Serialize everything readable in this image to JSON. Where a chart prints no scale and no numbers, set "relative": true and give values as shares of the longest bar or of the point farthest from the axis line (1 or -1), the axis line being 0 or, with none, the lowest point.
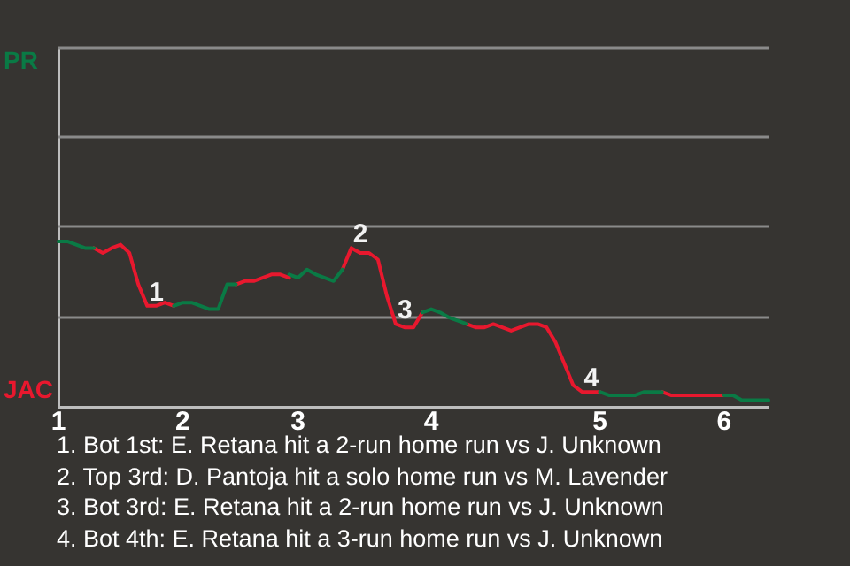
{
  "chart_data": {
    "type": "line",
    "relative": true,
    "categories": [
      "1",
      null,
      null,
      null,
      null,
      null,
      null,
      null,
      null,
      null,
      null,
      null,
      null,
      null,
      "2",
      null,
      null,
      null,
      null,
      null,
      null,
      null,
      null,
      null,
      null,
      null,
      null,
      "3",
      null,
      null,
      null,
      null,
      null,
      null,
      null,
      null,
      null,
      null,
      null,
      null,
      null,
      null,
      "4",
      null,
      null,
      null,
      null,
      null,
      null,
      null,
      null,
      null,
      null,
      null,
      null,
      null,
      null,
      null,
      null,
      null,
      null,
      "5",
      null,
      null,
      null,
      null,
      null,
      null,
      null,
      null,
      null,
      null,
      null,
      null,
      null,
      "6",
      null,
      null,
      null,
      null,
      null
    ],
    "series": [
      {
        "name": "PR",
        "color": "#0a7a45",
        "values": [
          1,
          1,
          0.98,
          0.96,
          0.96,
          null,
          null,
          null,
          null,
          null,
          null,
          null,
          null,
          0.61,
          0.63,
          0.63,
          0.61,
          0.59,
          0.59,
          0.74,
          0.74,
          null,
          null,
          null,
          null,
          null,
          0.8,
          0.78,
          0.83,
          0.8,
          0.78,
          0.76,
          0.83,
          null,
          null,
          null,
          null,
          null,
          null,
          null,
          null,
          0.57,
          0.59,
          0.57,
          0.54,
          0.52,
          0.5,
          null,
          null,
          null,
          null,
          null,
          null,
          null,
          null,
          null,
          null,
          null,
          null,
          null,
          null,
          0.09,
          0.07,
          0.07,
          0.07,
          0.07,
          0.09,
          0.09,
          0.09,
          null,
          null,
          null,
          null,
          null,
          null,
          0.07,
          0.07,
          0.04,
          0.04,
          0.04,
          0.04
        ]
      },
      {
        "name": "JAC",
        "color": "#e8182e",
        "values": [
          null,
          null,
          null,
          null,
          0.96,
          0.93,
          0.96,
          0.98,
          0.93,
          0.74,
          0.61,
          0.61,
          0.63,
          0.61,
          null,
          null,
          null,
          null,
          null,
          null,
          0.74,
          0.76,
          0.76,
          0.78,
          0.8,
          0.8,
          0.78,
          null,
          null,
          null,
          null,
          null,
          0.83,
          0.96,
          0.93,
          0.93,
          0.89,
          0.67,
          0.5,
          0.48,
          0.48,
          0.57,
          null,
          null,
          null,
          null,
          0.5,
          0.48,
          0.48,
          0.5,
          0.48,
          0.46,
          0.48,
          0.5,
          0.5,
          0.48,
          0.39,
          0.26,
          0.13,
          0.09,
          0.09,
          0.09,
          null,
          null,
          null,
          null,
          null,
          null,
          0.09,
          0.07,
          0.07,
          0.07,
          0.07,
          0.07,
          0.07,
          0.07,
          null,
          null,
          null,
          null,
          null
        ]
      }
    ],
    "ref_lines": [
      {
        "axis": "y",
        "value": 0.54,
        "color": "#8a8a8a"
      },
      {
        "axis": "y",
        "value": 1.09,
        "color": "#8a8a8a"
      },
      {
        "axis": "y",
        "value": 1.63,
        "color": "#8a8a8a"
      },
      {
        "axis": "y",
        "value": 2.17,
        "color": "#8a8a8a"
      }
    ],
    "marker": "none",
    "line_style": "solid",
    "annotations": [
      {
        "text": "1",
        "y": 0.61
      },
      {
        "text": "2",
        "y": 0.96
      },
      {
        "text": "3",
        "y": 0.5
      },
      {
        "text": "4",
        "y": 0.09
      },
      "1. Bot 1st: E. Retana hit a 2-run home run vs J. Unknown",
      "2. Top 3rd: D. Pantoja hit a solo home run vs M. Lavender",
      "3. Bot 3rd: E. Retana hit a 2-run home run vs J. Unknown",
      "4. Bot 4th: E. Retana hit a 3-run home run vs J. Unknown"
    ]
  }
}
